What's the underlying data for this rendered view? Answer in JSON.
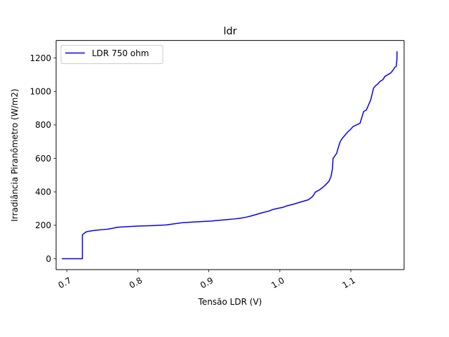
{
  "chart_data": {
    "type": "line",
    "title": "ldr",
    "xlabel": "Tensão LDR (V)",
    "ylabel": "Irradiância Piranômetro (W/m2)",
    "xlim": [
      0.685,
      1.175
    ],
    "ylim": [
      -65,
      1305
    ],
    "xticks": [
      0.7,
      0.8,
      0.9,
      1.0,
      1.1
    ],
    "xtick_labels": [
      "0.7",
      "0.8",
      "0.9",
      "1.0",
      "1.1"
    ],
    "yticks": [
      0,
      200,
      400,
      600,
      800,
      1000,
      1200
    ],
    "ytick_labels": [
      "0",
      "200",
      "400",
      "600",
      "800",
      "1000",
      "1200"
    ],
    "grid": false,
    "legend_position": "top-left",
    "series": [
      {
        "name": "LDR 750 ohm",
        "color": "#0000ff",
        "x": [
          0.693,
          0.722,
          0.722,
          0.724,
          0.727,
          0.732,
          0.737,
          0.743,
          0.75,
          0.758,
          0.766,
          0.771,
          0.782,
          0.8,
          0.82,
          0.84,
          0.848,
          0.862,
          0.88,
          0.903,
          0.912,
          0.926,
          0.936,
          0.944,
          0.952,
          0.96,
          0.968,
          0.976,
          0.984,
          0.99,
          0.996,
          1.004,
          1.01,
          1.02,
          1.03,
          1.04,
          1.045,
          1.048,
          1.05,
          1.056,
          1.06,
          1.064,
          1.069,
          1.072,
          1.074,
          1.075,
          1.08,
          1.082,
          1.085,
          1.088,
          1.092,
          1.095,
          1.1,
          1.103,
          1.108,
          1.113,
          1.118,
          1.122,
          1.125,
          1.128,
          1.132,
          1.135,
          1.138,
          1.141,
          1.145,
          1.148,
          1.152,
          1.156,
          1.159,
          1.162,
          1.164,
          1.165,
          1.165
        ],
        "y": [
          0,
          0,
          143,
          150,
          160,
          165,
          168,
          171,
          174,
          177,
          183,
          188,
          191,
          195,
          198,
          202,
          207,
          215,
          220,
          225,
          229,
          234,
          238,
          242,
          248,
          256,
          266,
          276,
          284,
          294,
          300,
          307,
          316,
          327,
          340,
          352,
          368,
          383,
          398,
          412,
          425,
          440,
          462,
          490,
          535,
          600,
          630,
          660,
          700,
          720,
          740,
          755,
          775,
          790,
          800,
          810,
          880,
          890,
          920,
          950,
          1020,
          1035,
          1045,
          1060,
          1070,
          1090,
          1100,
          1110,
          1125,
          1145,
          1150,
          1200,
          1240
        ]
      }
    ]
  }
}
